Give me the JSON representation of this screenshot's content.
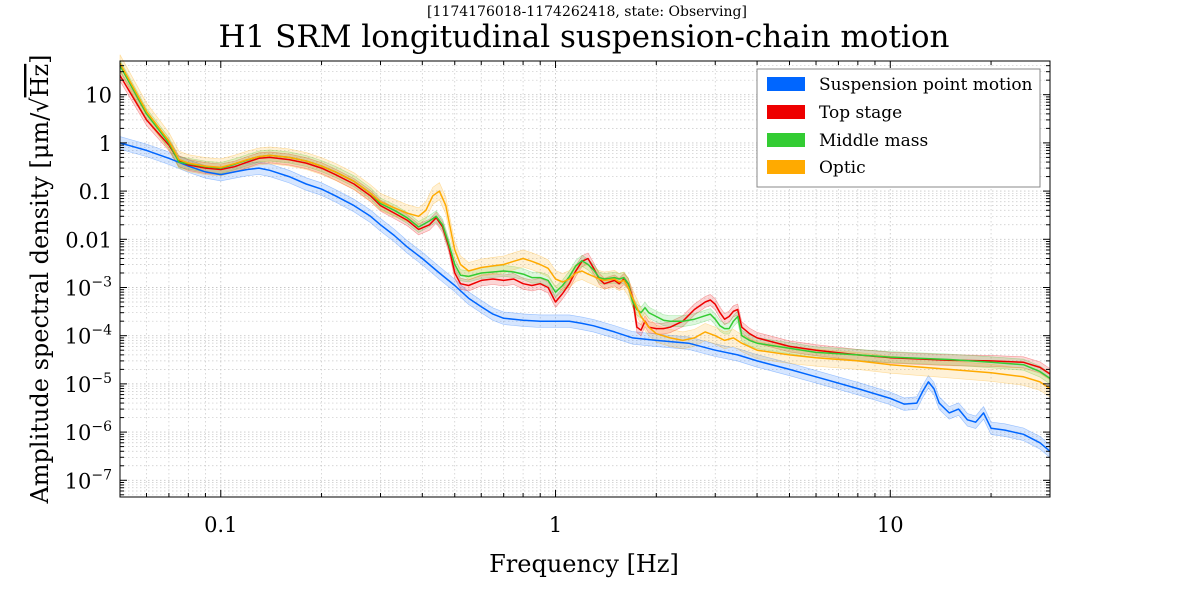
{
  "chart_data": {
    "type": "line",
    "subtitle": "[1174176018-1174262418, state: Observing]",
    "title": "H1 SRM longitudinal suspension-chain motion",
    "xlabel": "Frequency [Hz]",
    "ylabel_prefix": "Amplitude spectral density [μm/",
    "ylabel_radical": "Hz",
    "ylabel_suffix": "]",
    "x_scale": "log",
    "y_scale": "log",
    "xlim": [
      0.05,
      30
    ],
    "ylim": [
      4.5e-08,
      50
    ],
    "grid": true,
    "legend_position": "top-right",
    "x_ticks": [
      {
        "value": 0.1,
        "label": "0.1"
      },
      {
        "value": 1,
        "label": "1"
      },
      {
        "value": 10,
        "label": "10"
      }
    ],
    "y_ticks": [
      {
        "value": 10,
        "mant": "10",
        "exp": ""
      },
      {
        "value": 1,
        "mant": "1",
        "exp": ""
      },
      {
        "value": 0.1,
        "mant": "0.1",
        "exp": ""
      },
      {
        "value": 0.01,
        "mant": "0.01",
        "exp": ""
      },
      {
        "value": 0.001,
        "mant": "10",
        "exp": "−3"
      },
      {
        "value": 0.0001,
        "mant": "10",
        "exp": "−4"
      },
      {
        "value": 1e-05,
        "mant": "10",
        "exp": "−5"
      },
      {
        "value": 1e-06,
        "mant": "10",
        "exp": "−6"
      },
      {
        "value": 1e-07,
        "mant": "10",
        "exp": "−7"
      }
    ],
    "series": [
      {
        "name": "Suspension point motion",
        "color": "#0066ff",
        "band_factor": 1.35,
        "x": [
          0.05,
          0.06,
          0.07,
          0.08,
          0.09,
          0.1,
          0.11,
          0.12,
          0.13,
          0.14,
          0.16,
          0.18,
          0.2,
          0.22,
          0.25,
          0.28,
          0.3,
          0.33,
          0.36,
          0.4,
          0.45,
          0.5,
          0.55,
          0.6,
          0.65,
          0.7,
          0.75,
          0.8,
          0.9,
          1.0,
          1.1,
          1.2,
          1.3,
          1.5,
          1.7,
          2.0,
          2.5,
          3.0,
          3.5,
          4.0,
          5.0,
          6.0,
          8.0,
          10.0,
          11.0,
          12.0,
          12.5,
          13.0,
          13.5,
          14.0,
          15.0,
          16.0,
          17.0,
          18.0,
          19.0,
          20.0,
          22.0,
          25.0,
          28.0,
          30.0
        ],
        "y": [
          1.0,
          0.7,
          0.48,
          0.33,
          0.25,
          0.22,
          0.25,
          0.28,
          0.3,
          0.27,
          0.2,
          0.14,
          0.11,
          0.08,
          0.05,
          0.03,
          0.02,
          0.012,
          0.007,
          0.004,
          0.002,
          0.0011,
          0.0006,
          0.0004,
          0.00028,
          0.00023,
          0.00022,
          0.00021,
          0.0002,
          0.0002,
          0.0002,
          0.00018,
          0.00016,
          0.00012,
          9e-05,
          8e-05,
          7e-05,
          5e-05,
          4e-05,
          3e-05,
          2e-05,
          1.4e-05,
          8e-06,
          5e-06,
          3.8e-06,
          4e-06,
          7e-06,
          1.1e-05,
          8e-06,
          4e-06,
          2.5e-06,
          3e-06,
          1.8e-06,
          1.6e-06,
          2.5e-06,
          1.2e-06,
          1.1e-06,
          9e-07,
          6e-07,
          4e-07
        ]
      },
      {
        "name": "Top stage",
        "color": "#ee0000",
        "band_factor": 1.3,
        "x": [
          0.05,
          0.06,
          0.07,
          0.075,
          0.08,
          0.09,
          0.1,
          0.11,
          0.12,
          0.13,
          0.14,
          0.16,
          0.18,
          0.2,
          0.22,
          0.25,
          0.28,
          0.3,
          0.33,
          0.36,
          0.39,
          0.42,
          0.44,
          0.46,
          0.48,
          0.5,
          0.52,
          0.55,
          0.6,
          0.65,
          0.7,
          0.75,
          0.8,
          0.85,
          0.9,
          0.95,
          1.0,
          1.05,
          1.1,
          1.15,
          1.2,
          1.25,
          1.3,
          1.35,
          1.4,
          1.5,
          1.55,
          1.6,
          1.65,
          1.7,
          1.75,
          1.8,
          1.85,
          1.9,
          2.0,
          2.1,
          2.2,
          2.4,
          2.6,
          2.8,
          2.9,
          3.0,
          3.1,
          3.2,
          3.3,
          3.4,
          3.5,
          3.6,
          3.8,
          4.0,
          5.0,
          6.0,
          8.0,
          10.0,
          15.0,
          20.0,
          25.0,
          28.0,
          30.0
        ],
        "y": [
          25.0,
          3.0,
          0.9,
          0.42,
          0.35,
          0.3,
          0.28,
          0.32,
          0.4,
          0.48,
          0.5,
          0.45,
          0.38,
          0.3,
          0.22,
          0.14,
          0.08,
          0.05,
          0.035,
          0.025,
          0.016,
          0.02,
          0.028,
          0.018,
          0.007,
          0.002,
          0.0012,
          0.0011,
          0.0014,
          0.0015,
          0.0014,
          0.0015,
          0.0012,
          0.0011,
          0.0012,
          0.001,
          0.0005,
          0.00075,
          0.0012,
          0.0022,
          0.0035,
          0.004,
          0.0025,
          0.0015,
          0.0012,
          0.0014,
          0.0012,
          0.0015,
          0.0012,
          0.0006,
          0.00015,
          0.00013,
          0.0002,
          0.00015,
          0.00014,
          0.00014,
          0.00015,
          0.0002,
          0.00035,
          0.0005,
          0.00055,
          0.00045,
          0.0003,
          0.00022,
          0.00025,
          0.00032,
          0.00035,
          0.00015,
          0.00011,
          9e-05,
          6e-05,
          5e-05,
          4e-05,
          3.5e-05,
          3.1e-05,
          3e-05,
          2.8e-05,
          2.2e-05,
          1.6e-05
        ]
      },
      {
        "name": "Middle mass",
        "color": "#33cc33",
        "band_factor": 1.3,
        "x": [
          0.05,
          0.06,
          0.07,
          0.075,
          0.08,
          0.09,
          0.1,
          0.11,
          0.12,
          0.13,
          0.14,
          0.16,
          0.18,
          0.2,
          0.22,
          0.25,
          0.28,
          0.3,
          0.33,
          0.36,
          0.39,
          0.42,
          0.44,
          0.46,
          0.48,
          0.5,
          0.52,
          0.55,
          0.6,
          0.65,
          0.7,
          0.75,
          0.8,
          0.85,
          0.9,
          0.95,
          1.0,
          1.05,
          1.1,
          1.15,
          1.2,
          1.25,
          1.3,
          1.35,
          1.4,
          1.5,
          1.55,
          1.6,
          1.65,
          1.7,
          1.75,
          1.8,
          1.85,
          1.9,
          2.0,
          2.1,
          2.2,
          2.4,
          2.6,
          2.8,
          2.9,
          3.0,
          3.1,
          3.2,
          3.3,
          3.4,
          3.5,
          3.6,
          3.8,
          4.0,
          5.0,
          6.0,
          8.0,
          10.0,
          15.0,
          20.0,
          25.0,
          28.0,
          30.0
        ],
        "y": [
          40.0,
          4.0,
          1.0,
          0.4,
          0.37,
          0.32,
          0.3,
          0.36,
          0.44,
          0.52,
          0.55,
          0.5,
          0.42,
          0.33,
          0.25,
          0.16,
          0.09,
          0.055,
          0.04,
          0.028,
          0.018,
          0.024,
          0.03,
          0.02,
          0.008,
          0.003,
          0.0018,
          0.0017,
          0.002,
          0.0021,
          0.0022,
          0.0021,
          0.0019,
          0.0016,
          0.0016,
          0.0014,
          0.0008,
          0.0011,
          0.0017,
          0.0028,
          0.0036,
          0.003,
          0.0023,
          0.0016,
          0.0015,
          0.0016,
          0.0015,
          0.0016,
          0.0012,
          0.0005,
          0.00035,
          0.0003,
          0.00038,
          0.0003,
          0.00025,
          0.00021,
          0.0002,
          0.0002,
          0.00022,
          0.00026,
          0.00028,
          0.00022,
          0.00016,
          0.00014,
          0.00014,
          0.0002,
          0.00025,
          0.0001,
          8e-05,
          7e-05,
          5.5e-05,
          4.5e-05,
          4e-05,
          3.6e-05,
          3.2e-05,
          2.8e-05,
          2.5e-05,
          1.8e-05,
          1.3e-05
        ]
      },
      {
        "name": "Optic",
        "color": "#ffaa00",
        "band_factor": 1.5,
        "x": [
          0.05,
          0.06,
          0.07,
          0.075,
          0.08,
          0.09,
          0.1,
          0.11,
          0.12,
          0.13,
          0.14,
          0.16,
          0.18,
          0.2,
          0.22,
          0.25,
          0.28,
          0.3,
          0.33,
          0.36,
          0.39,
          0.41,
          0.43,
          0.45,
          0.47,
          0.49,
          0.5,
          0.52,
          0.55,
          0.6,
          0.65,
          0.7,
          0.75,
          0.8,
          0.85,
          0.9,
          0.95,
          1.0,
          1.05,
          1.1,
          1.15,
          1.2,
          1.25,
          1.3,
          1.35,
          1.4,
          1.5,
          1.55,
          1.6,
          1.65,
          1.7,
          1.8,
          1.9,
          2.0,
          2.2,
          2.4,
          2.6,
          2.8,
          3.0,
          3.2,
          3.4,
          3.6,
          4.0,
          5.0,
          6.0,
          8.0,
          10.0,
          15.0,
          20.0,
          25.0,
          28.0,
          30.0
        ],
        "y": [
          45.0,
          4.5,
          1.1,
          0.45,
          0.38,
          0.33,
          0.31,
          0.37,
          0.45,
          0.52,
          0.55,
          0.5,
          0.42,
          0.33,
          0.25,
          0.16,
          0.09,
          0.06,
          0.045,
          0.035,
          0.03,
          0.04,
          0.08,
          0.1,
          0.05,
          0.012,
          0.006,
          0.003,
          0.0022,
          0.0026,
          0.0028,
          0.003,
          0.0035,
          0.004,
          0.0035,
          0.003,
          0.0025,
          0.0015,
          0.0013,
          0.0015,
          0.002,
          0.0022,
          0.0019,
          0.0017,
          0.0015,
          0.0014,
          0.0015,
          0.0013,
          0.0014,
          0.001,
          0.0006,
          0.00025,
          0.00015,
          0.00011,
          9e-05,
          8e-05,
          9e-05,
          0.00012,
          0.0001,
          8e-05,
          9e-05,
          7e-05,
          5e-05,
          4e-05,
          3.5e-05,
          3e-05,
          2.5e-05,
          2e-05,
          1.7e-05,
          1.4e-05,
          1.1e-05,
          8e-06
        ]
      }
    ]
  }
}
